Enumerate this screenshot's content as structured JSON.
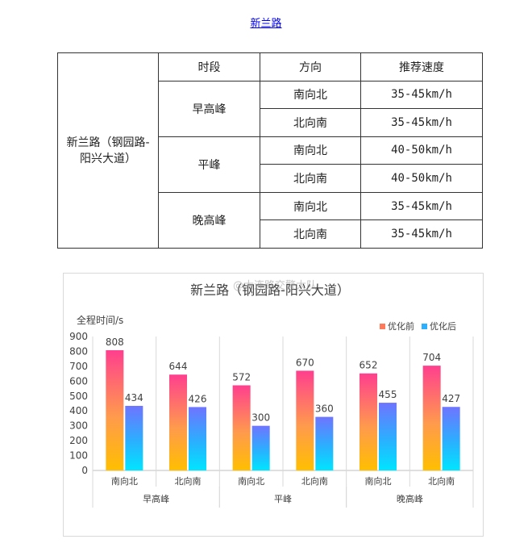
{
  "page_link": "新兰路",
  "table": {
    "headers": [
      "时段",
      "方向",
      "推荐速度"
    ],
    "road": [
      "新兰路（钢园路-",
      "阳兴大道）"
    ],
    "rows": [
      {
        "period": "早高峰",
        "directions": [
          {
            "dir": "南向北",
            "speed": "35-45km/h"
          },
          {
            "dir": "北向南",
            "speed": "35-45km/h"
          }
        ]
      },
      {
        "period": "平峰",
        "directions": [
          {
            "dir": "南向北",
            "speed": "40-50km/h"
          },
          {
            "dir": "北向南",
            "speed": "40-50km/h"
          }
        ]
      },
      {
        "period": "晚高峰",
        "directions": [
          {
            "dir": "南向北",
            "speed": "35-45km/h"
          },
          {
            "dir": "北向南",
            "speed": "35-45km/h"
          }
        ]
      }
    ]
  },
  "watermark": "@大连路交警大队",
  "chart_data": {
    "type": "bar",
    "title": "新兰路（钢园路-阳兴大道）",
    "ylabel": "全程时间/s",
    "xlabel": "",
    "ylim": [
      0,
      900
    ],
    "yticks": [
      0,
      100,
      200,
      300,
      400,
      500,
      600,
      700,
      800,
      900
    ],
    "categories": [
      "南向北",
      "北向南",
      "南向北",
      "北向南",
      "南向北",
      "北向南"
    ],
    "groups": [
      {
        "label": "早高峰",
        "span": 2
      },
      {
        "label": "平峰",
        "span": 2
      },
      {
        "label": "晚高峰",
        "span": 2
      }
    ],
    "series": [
      {
        "name": "优化前",
        "values": [
          808,
          644,
          572,
          670,
          652,
          704
        ]
      },
      {
        "name": "优化后",
        "values": [
          434,
          426,
          300,
          360,
          455,
          427
        ]
      }
    ],
    "legend_position": "top-right",
    "grid": false
  }
}
